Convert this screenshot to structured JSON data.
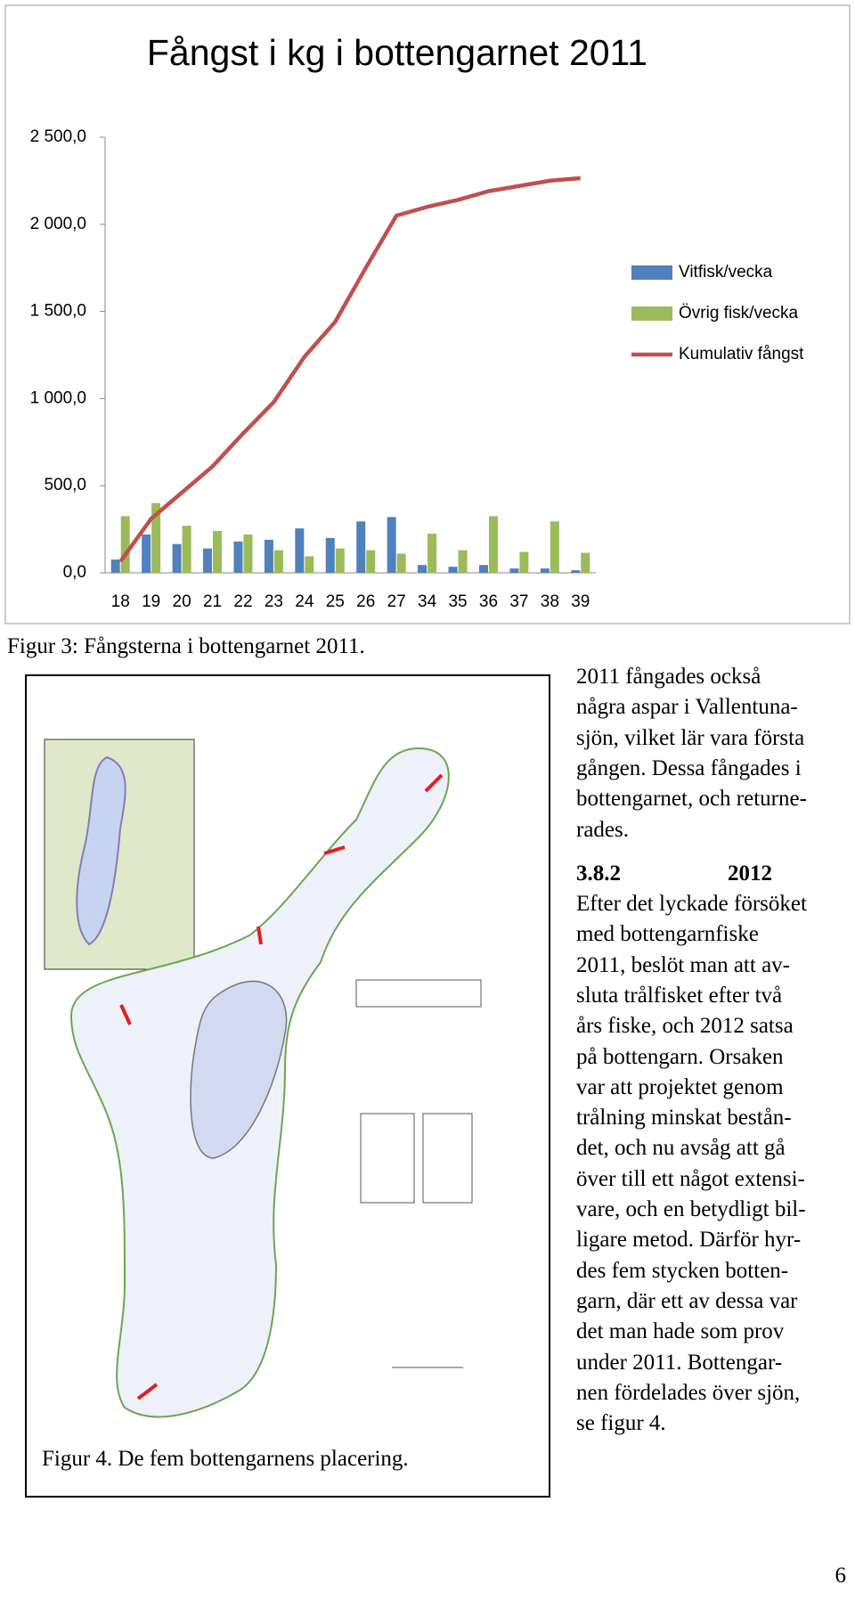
{
  "chart_data": {
    "type": "bar+line",
    "title": "Fångst i kg i bottengarnet 2011",
    "categories": [
      "18",
      "19",
      "20",
      "21",
      "22",
      "23",
      "24",
      "25",
      "26",
      "27",
      "34",
      "35",
      "36",
      "37",
      "38",
      "39"
    ],
    "series": [
      {
        "name": "Vitfisk/vecka",
        "type": "bar",
        "color": "#4f81bd",
        "values": [
          76,
          220,
          165,
          140,
          180,
          190,
          255,
          200,
          295,
          320,
          45,
          35,
          45,
          25,
          25,
          15
        ]
      },
      {
        "name": "Övrig fisk/vecka",
        "type": "bar",
        "color": "#9bbb59",
        "values": [
          325,
          400,
          270,
          240,
          220,
          130,
          95,
          140,
          130,
          110,
          225,
          130,
          325,
          120,
          295,
          115
        ]
      },
      {
        "name": "Kumulativ fångst",
        "type": "line",
        "color": "#c0504d",
        "values": [
          65,
          310,
          460,
          610,
          800,
          980,
          1240,
          1440,
          1750,
          2050,
          2100,
          2140,
          2190,
          2220,
          2250,
          2265
        ]
      }
    ],
    "ylim": [
      0,
      2500
    ],
    "yticks": [
      {
        "value": 0,
        "label": "0,0"
      },
      {
        "value": 500,
        "label": "500,0"
      },
      {
        "value": 1000,
        "label": "1 000,0"
      },
      {
        "value": 1500,
        "label": "1 500,0"
      },
      {
        "value": 2000,
        "label": "2 000,0"
      },
      {
        "value": 2500,
        "label": "2 500,0"
      }
    ],
    "grid": false,
    "legend": "right"
  },
  "figure3_caption": "Figur 3: Fångsterna i bottengarnet 2011.",
  "figure4_caption": "Figur 4. De fem bottengarnens placering.",
  "side_text": [
    "2011 fångades också",
    "några aspar i Vallentuna-",
    "sjön, vilket lär vara första",
    "gången. Dessa fångades i",
    "bottengarnet, och returne-",
    "rades."
  ],
  "section": {
    "number": "3.8.2",
    "heading": "2012"
  },
  "body": [
    "Efter det lyckade försöket",
    "med bottengarnfiske",
    "2011, beslöt man att av-",
    "sluta trålfisket efter två",
    "års fiske, och 2012 satsa",
    "på bottengarn. Orsaken",
    "var att projektet genom",
    "trålning minskat bestån-",
    "det, och nu avsåg att gå",
    "över till ett något extensi-",
    "vare, och en betydligt bil-",
    "ligare metod. Därför hyr-",
    "des fem stycken botten-",
    "garn, där ett av dessa var",
    "det man hade som prov",
    "under 2011. Bottengar-",
    "nen fördelades över sjön,",
    "se figur 4."
  ],
  "page_number": "6"
}
